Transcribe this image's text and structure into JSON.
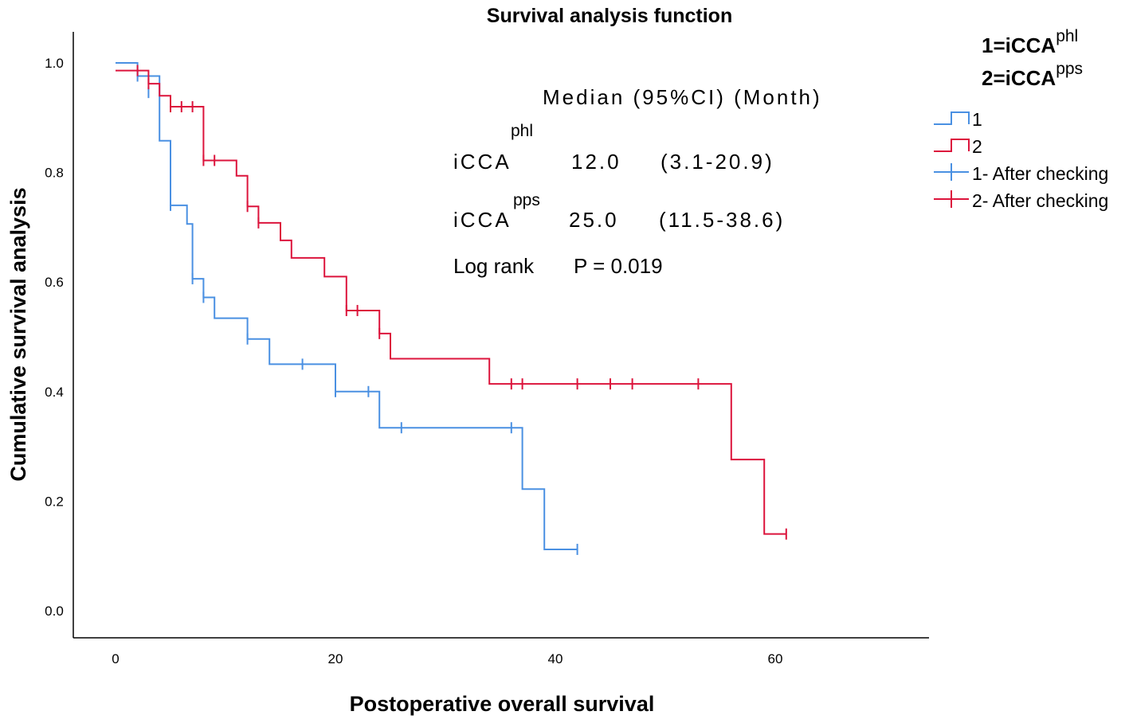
{
  "chart_data": {
    "type": "line",
    "title": "Survival analysis function",
    "xlabel": "Postoperative overall survival",
    "ylabel": "Cumulative survival analysis",
    "xlim": [
      -4,
      74
    ],
    "ylim": [
      -0.05,
      1.05
    ],
    "xticks": [
      0,
      20,
      40,
      60
    ],
    "yticks": [
      "0.0",
      "0.2",
      "0.4",
      "0.6",
      "0.8",
      "1.0"
    ],
    "group_key": [
      {
        "text": "1=iCCA",
        "sup": "phl"
      },
      {
        "text": "2=iCCA",
        "sup": "pps"
      }
    ],
    "legend": [
      {
        "label": "1",
        "kind": "step",
        "color": "#4a90e2"
      },
      {
        "label": "2",
        "kind": "step",
        "color": "#dc143c"
      },
      {
        "label": "1- After checking",
        "kind": "censor",
        "color": "#4a90e2"
      },
      {
        "label": "2- After checking",
        "kind": "censor",
        "color": "#dc143c"
      }
    ],
    "series": [
      {
        "name": "1",
        "color": "#4a90e2",
        "steps": [
          [
            0,
            1.0
          ],
          [
            2,
            0.976
          ],
          [
            4,
            0.858
          ],
          [
            5,
            0.74
          ],
          [
            6.5,
            0.706
          ],
          [
            7,
            0.606
          ],
          [
            8,
            0.572
          ],
          [
            9,
            0.534
          ],
          [
            12,
            0.496
          ],
          [
            14,
            0.45
          ],
          [
            20,
            0.4
          ],
          [
            24,
            0.334
          ],
          [
            37,
            0.222
          ],
          [
            39,
            0.112
          ],
          [
            42,
            0.112
          ]
        ],
        "censored": [
          [
            2,
            0.976
          ],
          [
            3,
            0.946
          ],
          [
            5,
            0.74
          ],
          [
            7,
            0.606
          ],
          [
            8,
            0.572
          ],
          [
            12,
            0.496
          ],
          [
            17,
            0.45
          ],
          [
            20,
            0.4
          ],
          [
            23,
            0.4
          ],
          [
            26,
            0.334
          ],
          [
            36,
            0.334
          ],
          [
            42,
            0.112
          ]
        ]
      },
      {
        "name": "2",
        "color": "#dc143c",
        "steps": [
          [
            0,
            0.986
          ],
          [
            3,
            0.962
          ],
          [
            4,
            0.94
          ],
          [
            5,
            0.92
          ],
          [
            8,
            0.822
          ],
          [
            11,
            0.794
          ],
          [
            12,
            0.738
          ],
          [
            13,
            0.708
          ],
          [
            15,
            0.676
          ],
          [
            16,
            0.644
          ],
          [
            19,
            0.61
          ],
          [
            21,
            0.548
          ],
          [
            24,
            0.506
          ],
          [
            25,
            0.46
          ],
          [
            34,
            0.414
          ],
          [
            56,
            0.276
          ],
          [
            59,
            0.14
          ],
          [
            61,
            0.14
          ]
        ],
        "censored": [
          [
            2,
            0.986
          ],
          [
            3,
            0.962
          ],
          [
            5,
            0.92
          ],
          [
            6,
            0.92
          ],
          [
            7,
            0.92
          ],
          [
            8,
            0.822
          ],
          [
            9,
            0.822
          ],
          [
            12,
            0.738
          ],
          [
            13,
            0.708
          ],
          [
            21,
            0.548
          ],
          [
            22,
            0.548
          ],
          [
            24,
            0.506
          ],
          [
            36,
            0.414
          ],
          [
            37,
            0.414
          ],
          [
            42,
            0.414
          ],
          [
            45,
            0.414
          ],
          [
            47,
            0.414
          ],
          [
            53,
            0.414
          ],
          [
            61,
            0.14
          ]
        ]
      }
    ],
    "annotations": {
      "header": "Median   (95%CI) (Month)",
      "rows": [
        {
          "label": "iCCA",
          "sup": "phl",
          "median": "12.0",
          "ci": "(3.1-20.9)"
        },
        {
          "label": "iCCA",
          "sup": "pps",
          "median": "25.0",
          "ci": "(11.5-38.6)"
        }
      ],
      "logrank_label": "Log rank",
      "logrank_value": "P = 0.019"
    }
  }
}
